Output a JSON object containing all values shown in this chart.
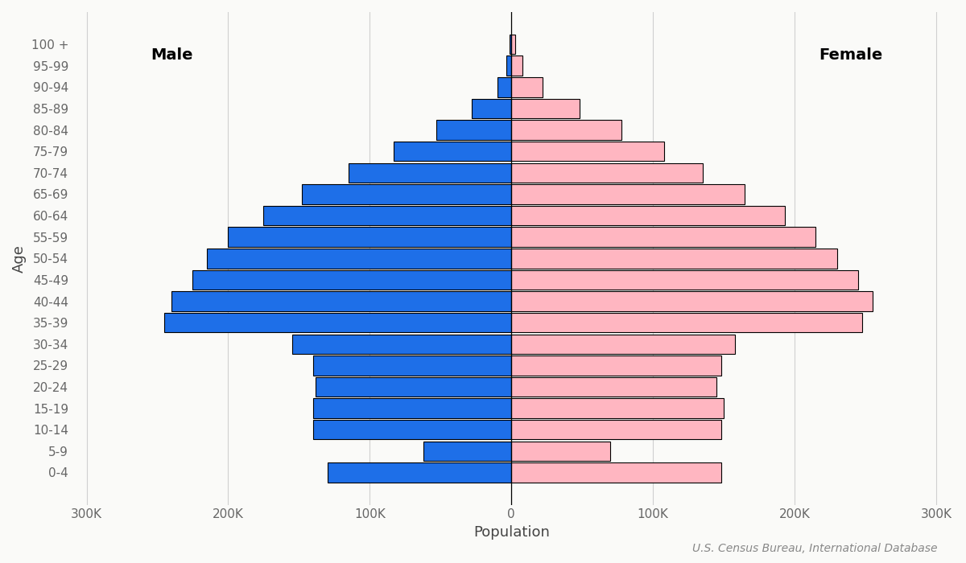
{
  "age_groups": [
    "0-4",
    "5-9",
    "10-14",
    "15-19",
    "20-24",
    "25-29",
    "30-34",
    "35-39",
    "40-44",
    "45-49",
    "50-54",
    "55-59",
    "60-64",
    "65-69",
    "70-74",
    "75-79",
    "80-84",
    "85-89",
    "90-94",
    "95-99",
    "100 +"
  ],
  "male": [
    130000,
    62000,
    140000,
    140000,
    138000,
    140000,
    155000,
    245000,
    240000,
    225000,
    215000,
    200000,
    175000,
    148000,
    115000,
    83000,
    53000,
    28000,
    10000,
    3500,
    1000
  ],
  "female": [
    148000,
    70000,
    148000,
    150000,
    145000,
    148000,
    158000,
    248000,
    255000,
    245000,
    230000,
    215000,
    193000,
    165000,
    135000,
    108000,
    78000,
    48000,
    22000,
    8000,
    2500
  ],
  "male_color": "#1E6FE8",
  "female_color": "#FFB6C1",
  "bar_edge_color": "black",
  "bar_edge_width": 0.8,
  "xlim": [
    -310000,
    310000
  ],
  "xticks": [
    -300000,
    -200000,
    -100000,
    0,
    100000,
    200000,
    300000
  ],
  "xtick_labels": [
    "300K",
    "200K",
    "100K",
    "0",
    "100K",
    "200K",
    "300K"
  ],
  "xlabel": "Population",
  "ylabel": "Age",
  "male_label": "Male",
  "female_label": "Female",
  "source_text": "U.S. Census Bureau, International Database",
  "background_color": "#FAFAF8",
  "grid_color": "#D0D0D0",
  "label_fontsize": 13,
  "tick_fontsize": 11,
  "bold_label_fontsize": 14,
  "source_fontsize": 10
}
